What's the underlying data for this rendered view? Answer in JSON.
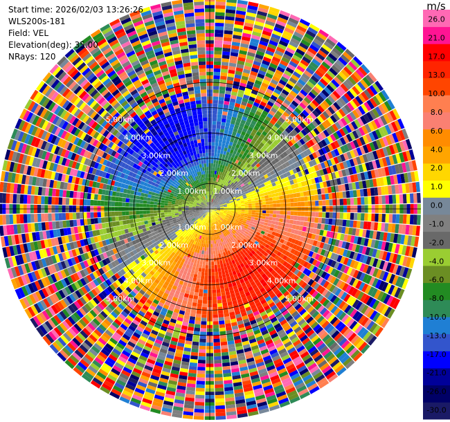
{
  "info": {
    "start_time": "Start time: 2026/02/03 13:26:26",
    "instrument": "WLS200s-181",
    "field": "Field: VEL",
    "elevation": "Elevation(deg): 35.00",
    "nrays": "NRays: 120"
  },
  "colorbar": {
    "unit": "m/s",
    "colors": [
      "#1a1a66",
      "#000066",
      "#000099",
      "#0000ff",
      "#3355cc",
      "#1f7fd4",
      "#2e8b57",
      "#228b22",
      "#6b8e23",
      "#9acd32",
      "#696969",
      "#808080",
      "#778899",
      "#ffff00",
      "#ffd700",
      "#ffa500",
      "#ff8c00",
      "#fa8072",
      "#ff7f50",
      "#ff4500",
      "#ff2400",
      "#ff0000",
      "#ff1493",
      "#ff69b4"
    ],
    "tick_labels": [
      "-30.0",
      "-26.0",
      "-21.0",
      "-17.0",
      "-13.0",
      "-10.0",
      "-8.0",
      "-6.0",
      "-4.0",
      "-2.0",
      "-1.0",
      "0.0",
      "1.0",
      "2.0",
      "4.0",
      "6.0",
      "8.0",
      "10.0",
      "13.0",
      "17.0",
      "21.0",
      "26.0"
    ]
  },
  "chart_data": {
    "type": "ppi",
    "field": "VEL",
    "units": "m/s",
    "elevation_deg": 35.0,
    "nrays": 120,
    "max_range_km": 5.0,
    "range_ring_labels": [
      "1.00km",
      "2.00km",
      "3.00km",
      "4.00km",
      "5.00km"
    ],
    "vmin": -30.0,
    "vmax": 30.0,
    "wind": {
      "toward_azimuth_deg": 150,
      "amplitude_ms": 22,
      "valid_range_km": 2.6
    }
  }
}
